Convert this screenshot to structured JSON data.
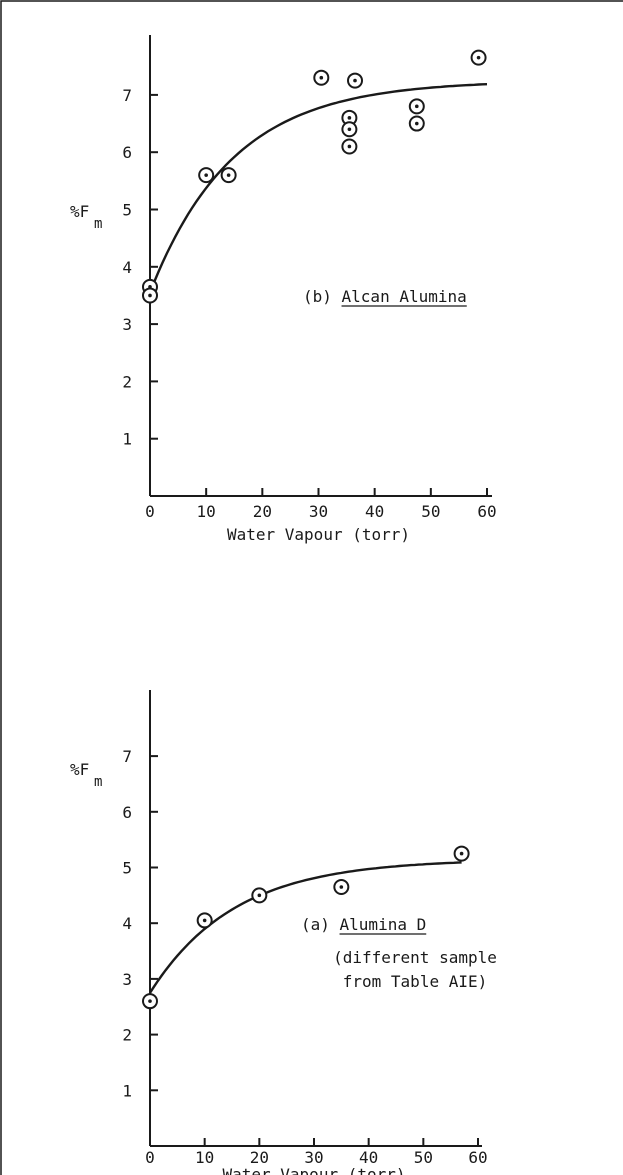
{
  "chart_data": [
    {
      "type": "scatter",
      "title": "",
      "xlabel": "Water Vapour (torr)",
      "ylabel": "%F",
      "ylabel_sub": "m",
      "annotation": "(b) Alcan Alumina",
      "annotation_prefix": "(b) ",
      "annotation_underlined": "Alcan Alumina",
      "xlim": [
        0,
        60
      ],
      "ylim": [
        0,
        8
      ],
      "xticks": [
        0,
        10,
        20,
        30,
        40,
        50,
        60
      ],
      "yticks": [
        1,
        2,
        3,
        4,
        5,
        6,
        7
      ],
      "xtick_labels": [
        "0",
        "10",
        "20",
        "30",
        "40",
        "50",
        "60"
      ],
      "ytick_labels": [
        "1",
        "2",
        "3",
        "4",
        "5",
        "6",
        "7"
      ],
      "grid": false,
      "points": [
        {
          "x": 0,
          "y": 3.65
        },
        {
          "x": 0,
          "y": 3.5
        },
        {
          "x": 10,
          "y": 5.6
        },
        {
          "x": 14,
          "y": 5.6
        },
        {
          "x": 30.5,
          "y": 7.3
        },
        {
          "x": 35.5,
          "y": 6.6
        },
        {
          "x": 35.5,
          "y": 6.4
        },
        {
          "x": 35.5,
          "y": 6.1
        },
        {
          "x": 36.5,
          "y": 7.25
        },
        {
          "x": 47.5,
          "y": 6.8
        },
        {
          "x": 47.5,
          "y": 6.5
        },
        {
          "x": 58.5,
          "y": 7.65
        }
      ],
      "curve": {
        "a": 7.25,
        "b": 3.55,
        "k": 0.068,
        "x_from": 0,
        "x_to": 60
      }
    },
    {
      "type": "scatter",
      "title": "",
      "xlabel": "Water Vapour (torr)",
      "ylabel": "%F",
      "ylabel_sub": "m",
      "annotation": "(a) Alumina D",
      "annotation_prefix": "(a) ",
      "annotation_underlined": "Alumina D",
      "note_lines": [
        "(different sample",
        "from Table AIE)"
      ],
      "xlim": [
        0,
        60
      ],
      "ylim": [
        0,
        8
      ],
      "xticks": [
        0,
        10,
        20,
        30,
        40,
        50,
        60
      ],
      "yticks": [
        1,
        2,
        3,
        4,
        5,
        6,
        7
      ],
      "xtick_labels": [
        "0",
        "10",
        "20",
        "30",
        "40",
        "50",
        "60"
      ],
      "ytick_labels": [
        "1",
        "2",
        "3",
        "4",
        "5",
        "6",
        "7"
      ],
      "grid": false,
      "points": [
        {
          "x": 0,
          "y": 2.6
        },
        {
          "x": 10,
          "y": 4.05
        },
        {
          "x": 20,
          "y": 4.5
        },
        {
          "x": 35,
          "y": 4.65
        },
        {
          "x": 57,
          "y": 5.25
        }
      ],
      "curve": {
        "a": 5.15,
        "b": 2.75,
        "k": 0.065,
        "x_from": 0,
        "x_to": 57
      }
    }
  ]
}
